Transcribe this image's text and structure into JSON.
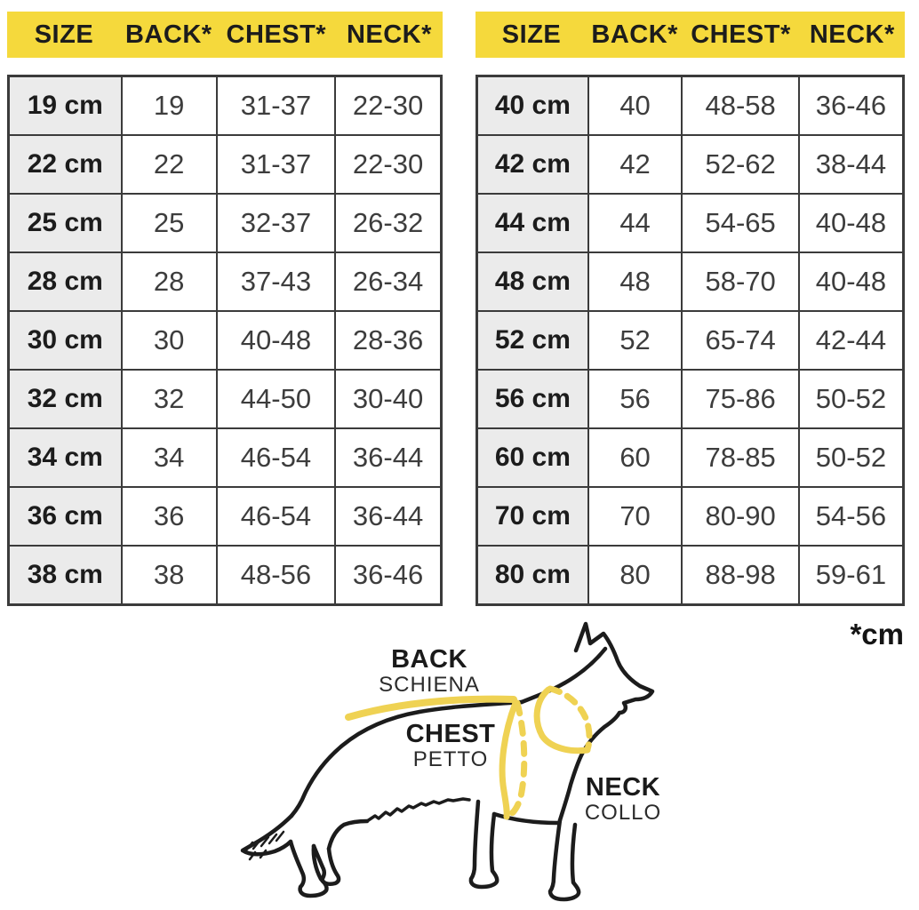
{
  "unit_note": "*cm",
  "chart_data": [
    {
      "type": "table",
      "columns": [
        "SIZE",
        "BACK*",
        "CHEST*",
        "NECK*"
      ],
      "rows": [
        [
          "19 cm",
          "19",
          "31-37",
          "22-30"
        ],
        [
          "22 cm",
          "22",
          "31-37",
          "22-30"
        ],
        [
          "25 cm",
          "25",
          "32-37",
          "26-32"
        ],
        [
          "28 cm",
          "28",
          "37-43",
          "26-34"
        ],
        [
          "30 cm",
          "30",
          "40-48",
          "28-36"
        ],
        [
          "32 cm",
          "32",
          "44-50",
          "30-40"
        ],
        [
          "34 cm",
          "34",
          "46-54",
          "36-44"
        ],
        [
          "36 cm",
          "36",
          "46-54",
          "36-44"
        ],
        [
          "38 cm",
          "38",
          "48-56",
          "36-46"
        ]
      ]
    },
    {
      "type": "table",
      "columns": [
        "SIZE",
        "BACK*",
        "CHEST*",
        "NECK*"
      ],
      "rows": [
        [
          "40 cm",
          "40",
          "48-58",
          "36-46"
        ],
        [
          "42 cm",
          "42",
          "52-62",
          "38-44"
        ],
        [
          "44 cm",
          "44",
          "54-65",
          "40-48"
        ],
        [
          "48 cm",
          "48",
          "58-70",
          "40-48"
        ],
        [
          "52 cm",
          "52",
          "65-74",
          "42-44"
        ],
        [
          "56 cm",
          "56",
          "75-86",
          "50-52"
        ],
        [
          "60 cm",
          "60",
          "78-85",
          "50-52"
        ],
        [
          "70 cm",
          "70",
          "80-90",
          "54-56"
        ],
        [
          "80 cm",
          "80",
          "88-98",
          "59-61"
        ]
      ]
    }
  ],
  "diagram": {
    "labels": [
      {
        "title": "BACK",
        "subtitle": "SCHIENA"
      },
      {
        "title": "CHEST",
        "subtitle": "PETTO"
      },
      {
        "title": "NECK",
        "subtitle": "COLLO"
      }
    ]
  },
  "colors": {
    "header_yellow": "#F5D93C",
    "measure_yellow": "#EFD253",
    "row_label_gray": "#EBEBEB",
    "table_border": "#3B3B3B",
    "heading_text": "#1C1C1C",
    "value_text": "#3D3D3D"
  }
}
